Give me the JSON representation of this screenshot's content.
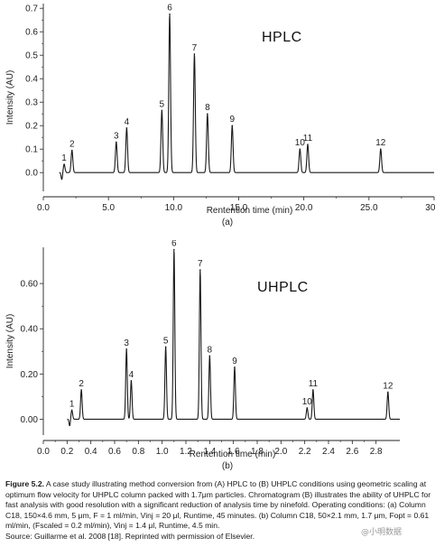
{
  "chart_data": [
    {
      "type": "line",
      "title": "HPLC",
      "panel_label": "(a)",
      "xlabel": "Rentention time (min)",
      "ylabel": "Intensity (AU)",
      "xlim": [
        0.0,
        30.0
      ],
      "ylim": [
        -0.08,
        0.72
      ],
      "xticks": [
        0.0,
        5.0,
        10.0,
        15.0,
        20.0,
        25.0,
        30.0
      ],
      "xtick_labels": [
        "0.0",
        "5.0",
        "10.0",
        "15.0",
        "20.0",
        "25.0",
        "30.0"
      ],
      "yticks": [
        0.0,
        0.1,
        0.2,
        0.3,
        0.4,
        0.5,
        0.6,
        0.7
      ],
      "ytick_labels": [
        "0.0",
        "0.1",
        "0.2",
        "0.3",
        "0.4",
        "0.5",
        "0.6",
        "0.7"
      ],
      "peaks": [
        {
          "label": "1",
          "x": 1.6,
          "y": 0.035
        },
        {
          "label": "2",
          "x": 2.2,
          "y": 0.095
        },
        {
          "label": "3",
          "x": 5.6,
          "y": 0.13
        },
        {
          "label": "4",
          "x": 6.4,
          "y": 0.19
        },
        {
          "label": "5",
          "x": 9.1,
          "y": 0.265
        },
        {
          "label": "6",
          "x": 9.7,
          "y": 0.675
        },
        {
          "label": "7",
          "x": 11.6,
          "y": 0.505
        },
        {
          "label": "8",
          "x": 12.6,
          "y": 0.25
        },
        {
          "label": "9",
          "x": 14.5,
          "y": 0.2
        },
        {
          "label": "10",
          "x": 19.7,
          "y": 0.1
        },
        {
          "label": "11",
          "x": 20.3,
          "y": 0.12
        },
        {
          "label": "12",
          "x": 25.9,
          "y": 0.1
        }
      ],
      "line_color": "#1a1a1a"
    },
    {
      "type": "line",
      "title": "UHPLC",
      "panel_label": "(b)",
      "xlabel": "Rentention time (min)",
      "ylabel": "Intensity (AU)",
      "xlim": [
        0.0,
        3.0
      ],
      "ylim": [
        -0.07,
        0.76
      ],
      "xticks": [
        0.0,
        0.2,
        0.4,
        0.6,
        0.8,
        1.0,
        1.2,
        1.4,
        1.6,
        1.8,
        2.0,
        2.2,
        2.4,
        2.6,
        2.8
      ],
      "xtick_labels": [
        "0.0",
        "0.2",
        "0.4",
        "0.6",
        "0.8",
        "1.0",
        "1.2",
        "1.4",
        "1.6",
        "1.8",
        "2.0",
        "2.2",
        "2.4",
        "2.6",
        "2.8"
      ],
      "yticks": [
        0.0,
        0.2,
        0.4,
        0.6
      ],
      "ytick_labels": [
        "0.00",
        "0.20",
        "0.40",
        "0.60"
      ],
      "peaks": [
        {
          "label": "1",
          "x": 0.24,
          "y": 0.04
        },
        {
          "label": "2",
          "x": 0.32,
          "y": 0.13
        },
        {
          "label": "3",
          "x": 0.7,
          "y": 0.31
        },
        {
          "label": "4",
          "x": 0.74,
          "y": 0.17
        },
        {
          "label": "5",
          "x": 1.03,
          "y": 0.32
        },
        {
          "label": "6",
          "x": 1.1,
          "y": 0.75
        },
        {
          "label": "7",
          "x": 1.32,
          "y": 0.66
        },
        {
          "label": "8",
          "x": 1.4,
          "y": 0.28
        },
        {
          "label": "9",
          "x": 1.61,
          "y": 0.23
        },
        {
          "label": "10",
          "x": 2.22,
          "y": 0.05
        },
        {
          "label": "11",
          "x": 2.27,
          "y": 0.13
        },
        {
          "label": "12",
          "x": 2.9,
          "y": 0.12
        }
      ],
      "line_color": "#1a1a1a"
    }
  ],
  "caption": {
    "figure_label": "Figure 5.2.",
    "text": " A case study illustrating method conversion from (A) HPLC to (B) UHPLC conditions using geometric scaling at optimum flow velocity for UHPLC column packed with 1.7μm particles. Chromatogram (B) illustrates the ability of UHPLC for fast analysis with good resolution with a significant reduction of analysis time by ninefold. Operating conditions: (a) Column C18, 150×4.6 mm, 5 μm, F = 1 ml/min, Vinj = 20 μl, Runtime, 45 minutes. (b) Column C18, 50×2.1 mm, 1.7 μm, Fopt = 0.61 ml/min, (Fscaled = 0.2 ml/min), Vinj = 1.4 μl, Runtime, 4.5 min.",
    "source": "Source: Guillarme et al. 2008 [18]. Reprinted with permission of Elsevier."
  },
  "watermark": "@小明数据"
}
